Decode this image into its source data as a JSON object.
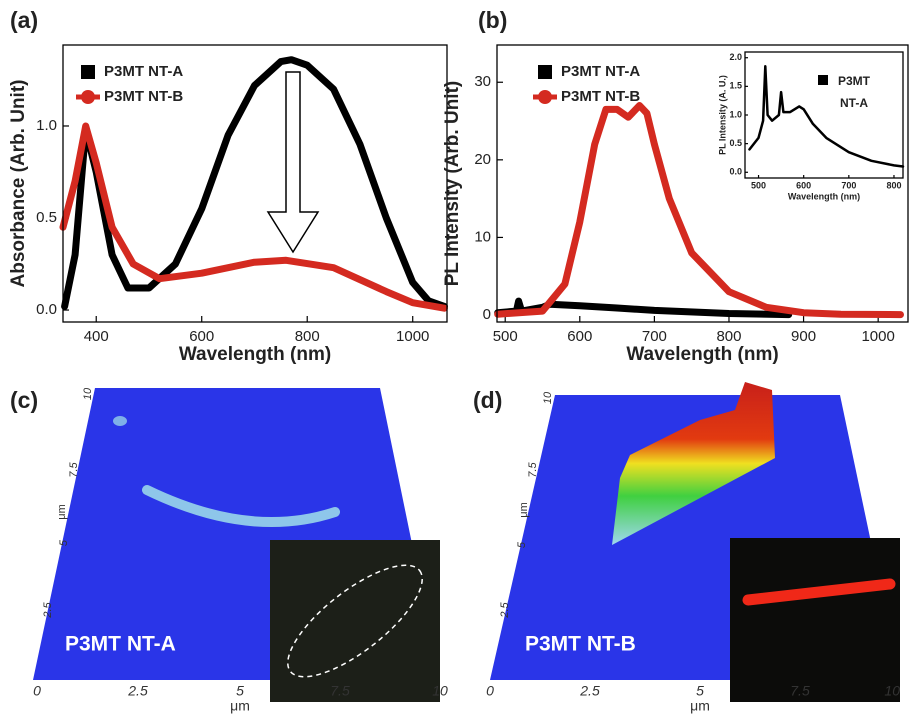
{
  "chart_data": [
    {
      "type": "line",
      "label": "(a)",
      "x_label": "Wavelength (nm)",
      "y_label": "Absorbance (Arb. Unit)",
      "xlim": [
        337,
        1065
      ],
      "xticks": [
        400,
        600,
        800,
        1000
      ],
      "ylim": [
        -0.065,
        1.44
      ],
      "yticks": [
        {
          "value": 0,
          "label": "0.0"
        },
        {
          "value": 0.5,
          "label": "0.5"
        },
        {
          "value": 1,
          "label": "1.0"
        }
      ],
      "legend": "upper left",
      "series": [
        {
          "name": "P3MT NT-A",
          "color": "#000000",
          "marker": "square",
          "x": [
            340,
            360,
            380,
            400,
            430,
            460,
            500,
            550,
            600,
            650,
            700,
            750,
            770,
            800,
            850,
            900,
            950,
            1000,
            1030,
            1060
          ],
          "values": [
            0.02,
            0.3,
            0.98,
            0.75,
            0.3,
            0.12,
            0.12,
            0.25,
            0.55,
            0.95,
            1.22,
            1.35,
            1.36,
            1.33,
            1.2,
            0.9,
            0.5,
            0.15,
            0.05,
            0.02
          ]
        },
        {
          "name": "P3MT NT-B",
          "color": "#d42a20",
          "marker": "circle",
          "x": [
            337,
            360,
            380,
            400,
            430,
            470,
            520,
            600,
            700,
            760,
            850,
            950,
            1000,
            1060
          ],
          "values": [
            0.45,
            0.7,
            1.0,
            0.8,
            0.45,
            0.25,
            0.17,
            0.2,
            0.26,
            0.27,
            0.23,
            0.1,
            0.04,
            0.01
          ]
        }
      ]
    },
    {
      "type": "line",
      "label": "(b)",
      "x_label": "Wavelength (nm)",
      "y_label": "PL Intensity (Arb. Unit)",
      "xlim": [
        489,
        1040
      ],
      "xticks": [
        500,
        600,
        700,
        800,
        900,
        1000
      ],
      "ylim": [
        -0.9,
        34.8
      ],
      "yticks": [
        0,
        10,
        20,
        30
      ],
      "legend": "upper left",
      "series": [
        {
          "name": "P3MT NT-A",
          "color": "#000000",
          "marker": "square",
          "x": [
            490,
            515,
            518,
            522,
            550,
            560,
            600,
            650,
            700,
            800,
            880
          ],
          "values": [
            0.3,
            0.5,
            1.8,
            0.5,
            1.0,
            1.4,
            1.2,
            0.9,
            0.6,
            0.2,
            0.05
          ]
        },
        {
          "name": "P3MT NT-B",
          "color": "#d42a20",
          "marker": "circle",
          "x": [
            490,
            550,
            580,
            600,
            620,
            635,
            650,
            665,
            680,
            690,
            700,
            720,
            750,
            800,
            850,
            900,
            950,
            1030
          ],
          "values": [
            0.1,
            0.5,
            4,
            12,
            22,
            26.5,
            26.5,
            25.5,
            27,
            26,
            22,
            15,
            8,
            3,
            1,
            0.3,
            0.1,
            0.05
          ]
        }
      ]
    },
    {
      "type": "line",
      "x_label": "Wavelength (nm)",
      "y_label": "PL Intensity (A. U.)",
      "xlim": [
        470,
        820
      ],
      "xticks": [
        500,
        600,
        700,
        800
      ],
      "ylim": [
        -0.1,
        2.1
      ],
      "yticks": [
        {
          "value": 0,
          "label": "0.0"
        },
        {
          "value": 0.5,
          "label": "0.5"
        },
        {
          "value": 1,
          "label": "1.0"
        },
        {
          "value": 1.5,
          "label": "1.5"
        },
        {
          "value": 2,
          "label": "2.0"
        }
      ],
      "legend": "upper right",
      "series": [
        {
          "name": "P3MT NT-A",
          "color": "#000000",
          "marker": "square",
          "x": [
            480,
            500,
            510,
            515,
            520,
            530,
            545,
            550,
            555,
            570,
            590,
            600,
            620,
            650,
            700,
            750,
            800,
            820
          ],
          "values": [
            0.4,
            0.6,
            0.9,
            1.85,
            1.0,
            0.9,
            1.0,
            1.4,
            1.05,
            1.05,
            1.15,
            1.1,
            0.85,
            0.6,
            0.35,
            0.2,
            0.12,
            0.1
          ]
        }
      ]
    }
  ],
  "images": [
    {
      "label": "(c)",
      "caption": "P3MT NT-A",
      "x_ticks": [
        "0",
        "2.5",
        "5",
        "7.5",
        "10"
      ],
      "y_ticks": [
        "10",
        "7.5",
        "5",
        "2.5"
      ],
      "x_unit": "μm",
      "y_unit": "μm"
    },
    {
      "label": "(d)",
      "caption": "P3MT NT-B",
      "x_ticks": [
        "0",
        "2.5",
        "5",
        "7.5",
        "10"
      ],
      "y_ticks": [
        "10",
        "7.5",
        "5",
        "2.5"
      ],
      "x_unit": "μm",
      "y_unit": "μm"
    }
  ]
}
